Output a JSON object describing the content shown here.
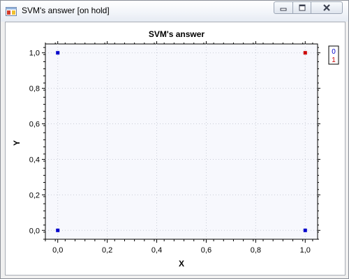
{
  "window": {
    "title": "SVM's answer [on hold]",
    "controls": {
      "minimize_icon": "minimize-icon",
      "maximize_icon": "maximize-icon",
      "close_icon": "close-icon"
    }
  },
  "chart_data": {
    "type": "scatter",
    "title": "SVM's answer",
    "xlabel": "X",
    "ylabel": "Y",
    "xlim": [
      -0.05,
      1.05
    ],
    "ylim": [
      -0.05,
      1.05
    ],
    "x_ticks": [
      "0,0",
      "0,2",
      "0,4",
      "0,6",
      "0,8",
      "1,0"
    ],
    "y_ticks": [
      "0,0",
      "0,2",
      "0,4",
      "0,6",
      "0,8",
      "1,0"
    ],
    "x_tick_values": [
      0,
      0.2,
      0.4,
      0.6,
      0.8,
      1.0
    ],
    "y_tick_values": [
      0,
      0.2,
      0.4,
      0.6,
      0.8,
      1.0
    ],
    "grid": true,
    "legend_position": "top-right",
    "series": [
      {
        "name": "0",
        "color": "#0000cc",
        "points": [
          [
            0,
            1
          ],
          [
            0,
            0
          ],
          [
            1,
            0
          ]
        ]
      },
      {
        "name": "1",
        "color": "#cc0000",
        "points": [
          [
            1,
            1
          ]
        ]
      }
    ],
    "plot_background": "#f7f8fd"
  }
}
